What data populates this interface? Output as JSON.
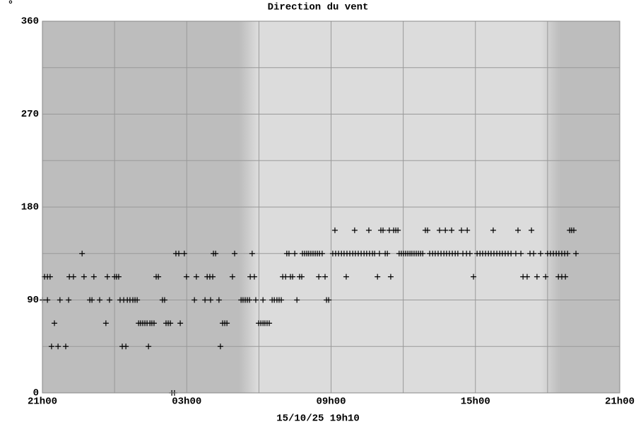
{
  "chart_data": {
    "type": "scatter",
    "title": "Direction du vent",
    "ylabel": "°",
    "footer": "15/10/25 19h10",
    "xlim": [
      0,
      24
    ],
    "ylim": [
      0,
      360
    ],
    "xticks": [
      {
        "value": 0,
        "label": "21h00"
      },
      {
        "value": 6,
        "label": "03h00"
      },
      {
        "value": 12,
        "label": "09h00"
      },
      {
        "value": 18,
        "label": "15h00"
      },
      {
        "value": 24,
        "label": "21h00"
      }
    ],
    "yticks": [
      0,
      90,
      180,
      270,
      360
    ],
    "xgrid": [
      3,
      9,
      15,
      21
    ],
    "ygrid": [
      45,
      135,
      225,
      315
    ],
    "night": [
      [
        0,
        8.2
      ],
      [
        21.5,
        24
      ]
    ],
    "color": "#000000",
    "x": [
      0.09,
      0.21,
      0.32,
      1.12,
      1.29,
      1.73,
      2.14,
      2.7,
      3.0,
      3.08,
      3.17,
      4.73,
      4.82,
      5.99,
      6.4,
      6.85,
      6.96,
      7.08,
      7.9,
      8.64,
      8.81,
      9.99,
      10.11,
      10.31,
      10.4,
      10.69,
      10.78,
      11.49,
      11.75,
      12.63,
      13.93,
      14.48,
      17.92,
      19.98,
      20.15,
      20.56,
      20.92,
      21.45,
      21.59,
      21.74,
      0.0,
      0.21,
      0.73,
      1.09,
      1.97,
      2.06,
      2.38,
      2.79,
      3.23,
      3.38,
      3.53,
      3.64,
      3.76,
      3.85,
      3.94,
      4.99,
      5.08,
      6.32,
      6.76,
      6.99,
      7.34,
      8.26,
      8.34,
      8.43,
      8.52,
      8.61,
      8.87,
      9.17,
      9.55,
      9.64,
      9.75,
      9.84,
      9.93,
      10.58,
      11.81,
      11.9,
      0.5,
      2.64,
      4.0,
      4.08,
      4.17,
      4.26,
      4.35,
      4.47,
      4.55,
      4.64,
      5.14,
      5.23,
      5.32,
      5.73,
      7.49,
      7.58,
      7.67,
      8.99,
      9.08,
      9.17,
      9.25,
      9.34,
      9.43,
      0.38,
      0.65,
      0.97,
      3.32,
      3.47,
      4.41,
      7.4,
      5.38,
      5.49,
      1.65,
      5.55,
      5.67,
      5.9,
      7.11,
      7.2,
      7.99,
      8.72,
      10.16,
      10.25,
      10.49,
      10.81,
      10.9,
      10.99,
      11.07,
      11.16,
      11.25,
      11.34,
      11.43,
      11.52,
      11.63,
      12.07,
      12.19,
      12.31,
      12.43,
      12.54,
      12.66,
      12.78,
      12.9,
      13.01,
      13.13,
      13.25,
      13.37,
      13.48,
      13.6,
      13.72,
      13.81,
      14.01,
      14.25,
      14.34,
      14.83,
      14.92,
      15.01,
      15.1,
      15.19,
      15.28,
      15.36,
      15.45,
      15.54,
      15.63,
      15.72,
      15.81,
      16.1,
      16.22,
      16.33,
      16.45,
      16.57,
      16.69,
      16.8,
      16.92,
      17.04,
      17.16,
      17.27,
      17.48,
      17.63,
      17.77,
      18.07,
      18.19,
      18.3,
      18.42,
      18.54,
      18.65,
      18.77,
      18.89,
      19.01,
      19.12,
      19.24,
      19.36,
      19.48,
      19.68,
      19.89,
      20.27,
      20.42,
      20.71,
      21.0,
      21.12,
      21.24,
      21.36,
      21.47,
      21.59,
      21.71,
      21.83,
      22.18,
      12.16,
      12.98,
      13.57,
      14.07,
      14.16,
      14.42,
      14.6,
      14.69,
      14.78,
      15.92,
      16.01,
      16.51,
      16.75,
      17.01,
      17.42,
      17.66,
      18.74,
      19.77,
      20.33,
      21.92,
      22.0,
      22.09
    ],
    "values": [
      112.5,
      112.5,
      112.5,
      112.5,
      112.5,
      112.5,
      112.5,
      112.5,
      112.5,
      112.5,
      112.5,
      112.5,
      112.5,
      112.5,
      112.5,
      112.5,
      112.5,
      112.5,
      112.5,
      112.5,
      112.5,
      112.5,
      112.5,
      112.5,
      112.5,
      112.5,
      112.5,
      112.5,
      112.5,
      112.5,
      112.5,
      112.5,
      112.5,
      112.5,
      112.5,
      112.5,
      112.5,
      112.5,
      112.5,
      112.5,
      90,
      90,
      90,
      90,
      90,
      90,
      90,
      90,
      90,
      90,
      90,
      90,
      90,
      90,
      90,
      90,
      90,
      90,
      90,
      90,
      90,
      90,
      90,
      90,
      90,
      90,
      90,
      90,
      90,
      90,
      90,
      90,
      90,
      90,
      90,
      90,
      67.5,
      67.5,
      67.5,
      67.5,
      67.5,
      67.5,
      67.5,
      67.5,
      67.5,
      67.5,
      67.5,
      67.5,
      67.5,
      67.5,
      67.5,
      67.5,
      67.5,
      67.5,
      67.5,
      67.5,
      67.5,
      67.5,
      67.5,
      45,
      45,
      45,
      45,
      45,
      45,
      45,
      0,
      0,
      135,
      135,
      135,
      135,
      135,
      135,
      135,
      135,
      135,
      135,
      135,
      135,
      135,
      135,
      135,
      135,
      135,
      135,
      135,
      135,
      135,
      135,
      135,
      135,
      135,
      135,
      135,
      135,
      135,
      135,
      135,
      135,
      135,
      135,
      135,
      135,
      135,
      135,
      135,
      135,
      135,
      135,
      135,
      135,
      135,
      135,
      135,
      135,
      135,
      135,
      135,
      135,
      135,
      135,
      135,
      135,
      135,
      135,
      135,
      135,
      135,
      135,
      135,
      135,
      135,
      135,
      135,
      135,
      135,
      135,
      135,
      135,
      135,
      135,
      135,
      135,
      135,
      135,
      135,
      135,
      135,
      135,
      135,
      135,
      135,
      135,
      135,
      135,
      135,
      135,
      135,
      135,
      135,
      157.5,
      157.5,
      157.5,
      157.5,
      157.5,
      157.5,
      157.5,
      157.5,
      157.5,
      157.5,
      157.5,
      157.5,
      157.5,
      157.5,
      157.5,
      157.5,
      157.5,
      157.5,
      157.5,
      157.5,
      157.5,
      157.5
    ]
  }
}
